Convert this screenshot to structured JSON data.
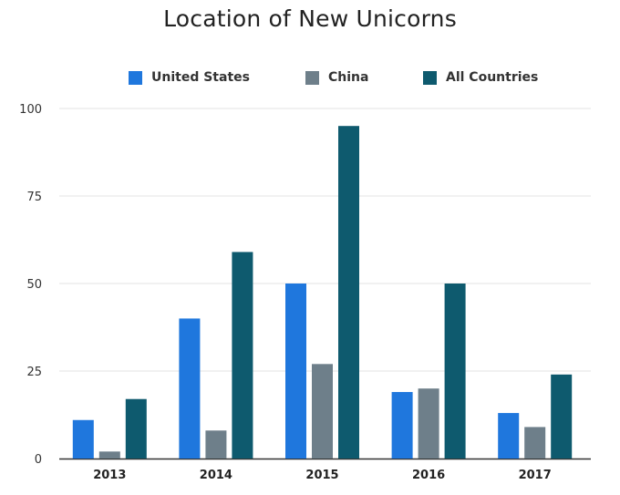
{
  "chart_data": {
    "type": "bar",
    "title": "Location of New Unicorns",
    "categories": [
      "2013",
      "2014",
      "2015",
      "2016",
      "2017"
    ],
    "series": [
      {
        "name": "United States",
        "color": "#1f77dd",
        "values": [
          11,
          40,
          50,
          19,
          13
        ]
      },
      {
        "name": "China",
        "color": "#6e7f8a",
        "values": [
          2,
          8,
          27,
          20,
          9
        ]
      },
      {
        "name": "All Countries",
        "color": "#0e5a6e",
        "values": [
          17,
          59,
          95,
          50,
          24
        ]
      }
    ],
    "yticks": [
      "0",
      "25",
      "50",
      "75",
      "100"
    ],
    "ylim": [
      0,
      100
    ],
    "grid": true,
    "legend_position": "top",
    "xlabel": "",
    "ylabel": ""
  }
}
